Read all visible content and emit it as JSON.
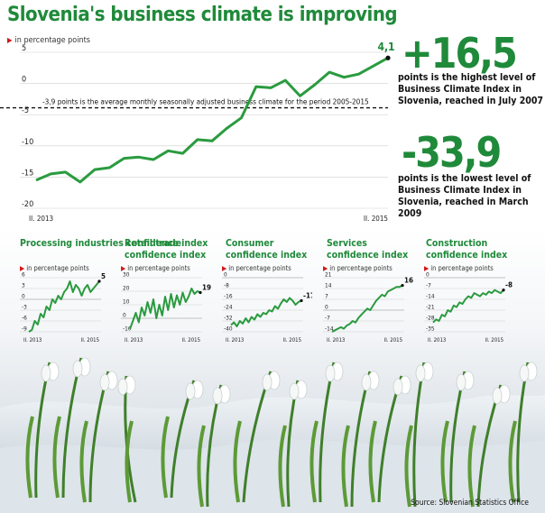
{
  "title": "Slovenia's business climate is improving",
  "unit_label": "in percentage points",
  "colors": {
    "accent": "#1f8a3a",
    "marker": "#d01818",
    "line": "#2a9b3f"
  },
  "main_chart": {
    "chart_data": {
      "type": "line",
      "title": "Slovenia's business climate is improving",
      "ylabel": "in percentage points",
      "ylim": [
        -20,
        5
      ],
      "yticks": [
        "5",
        "0",
        "-5",
        "-10",
        "-15",
        "-20"
      ],
      "x_start_label": "II. 2013",
      "x_end_label": "II. 2015",
      "x": [
        "II. 2013",
        "III. 2013",
        "IV. 2013",
        "V. 2013",
        "VI. 2013",
        "VII. 2013",
        "VIII. 2013",
        "IX. 2013",
        "X. 2013",
        "XI. 2013",
        "XII. 2013",
        "I. 2014",
        "II. 2014",
        "III. 2014",
        "IV. 2014",
        "V. 2014",
        "VI. 2014",
        "VII. 2014",
        "VIII. 2014",
        "IX. 2014",
        "X. 2014",
        "XI. 2014",
        "XII. 2014",
        "I. 2015",
        "II. 2015"
      ],
      "values": [
        -15.5,
        -14.5,
        -14.2,
        -15.8,
        -13.8,
        -13.5,
        -12,
        -11.8,
        -12.2,
        -10.8,
        -11.2,
        -9,
        -9.2,
        -7.2,
        -5.5,
        -0.5,
        -0.7,
        0.5,
        -2,
        -0.2,
        1.8,
        1,
        1.5,
        2.8,
        4.1
      ],
      "end_label": "4,1",
      "reference_value": -3.9,
      "reference_label": "-3,9 points is the average monthly seasonally adjusted business climate for the period 2005-2015"
    }
  },
  "highlights": [
    {
      "value": "+16,5",
      "text": "points is the highest level of Business Climate Index in Slovenia, reached in July 2007"
    },
    {
      "value": "-33,9",
      "text": "points is the lowest level of Business Climate Index in Slovenia, reached in March 2009"
    }
  ],
  "small_charts": [
    {
      "title": "Processing industries confidence index",
      "chart_data": {
        "type": "line",
        "ylim": [
          -9,
          6
        ],
        "yticks": [
          "6",
          "3",
          "0",
          "-3",
          "-6",
          "-9"
        ],
        "x_start_label": "II. 2013",
        "x_end_label": "II. 2015",
        "values": [
          -9,
          -8.5,
          -6,
          -7,
          -4,
          -5,
          -2,
          -3,
          0,
          -1,
          1,
          0,
          2,
          3,
          5,
          2,
          4,
          3,
          1,
          3,
          4,
          2,
          3,
          4,
          5
        ],
        "end_label": "5"
      }
    },
    {
      "title": "Retail trade confidence index",
      "chart_data": {
        "type": "line",
        "ylim": [
          -10,
          30
        ],
        "yticks": [
          "30",
          "20",
          "10",
          "0",
          "-10"
        ],
        "x_start_label": "II. 2013",
        "x_end_label": "II. 2015",
        "values": [
          -8,
          -2,
          4,
          -3,
          8,
          2,
          12,
          4,
          14,
          0,
          10,
          2,
          16,
          6,
          18,
          8,
          17,
          10,
          19,
          12,
          16,
          22,
          18,
          20,
          19
        ],
        "end_label": "19"
      }
    },
    {
      "title": "Consumer confidence index",
      "chart_data": {
        "type": "line",
        "ylim": [
          -40,
          0
        ],
        "yticks": [
          "0",
          "-8",
          "-16",
          "-24",
          "-32",
          "-40"
        ],
        "x_start_label": "II. 2013",
        "x_end_label": "II. 2015",
        "values": [
          -35,
          -33,
          -36,
          -32,
          -34,
          -30,
          -33,
          -29,
          -31,
          -27,
          -29,
          -26,
          -27,
          -24,
          -25,
          -21,
          -23,
          -19,
          -16,
          -18,
          -15,
          -17,
          -20,
          -18,
          -17
        ],
        "end_label": "-17"
      }
    },
    {
      "title": "Services confidence index",
      "chart_data": {
        "type": "line",
        "ylim": [
          -14,
          21
        ],
        "yticks": [
          "21",
          "14",
          "7",
          "0",
          "-7",
          "-14"
        ],
        "x_start_label": "II. 2013",
        "x_end_label": "II. 2015",
        "values": [
          -14,
          -13,
          -12,
          -11,
          -12,
          -10,
          -9,
          -7,
          -8,
          -5,
          -3,
          -1,
          1,
          0,
          3,
          6,
          8,
          10,
          9,
          12,
          13,
          14,
          15,
          15,
          16
        ],
        "end_label": "16"
      }
    },
    {
      "title": "Construction confidence index",
      "chart_data": {
        "type": "line",
        "ylim": [
          -35,
          0
        ],
        "yticks": [
          "0",
          "-7",
          "-14",
          "-21",
          "-28",
          "-35"
        ],
        "x_start_label": "II. 2013",
        "x_end_label": "II. 2015",
        "values": [
          -29,
          -27,
          -28,
          -24,
          -25,
          -21,
          -22,
          -18,
          -19,
          -16,
          -17,
          -14,
          -12,
          -13,
          -10,
          -11,
          -12,
          -10,
          -11,
          -9,
          -10,
          -8,
          -9,
          -10,
          -8
        ],
        "end_label": "-8"
      }
    }
  ],
  "source": "Source: Slovenian Statistics Office"
}
